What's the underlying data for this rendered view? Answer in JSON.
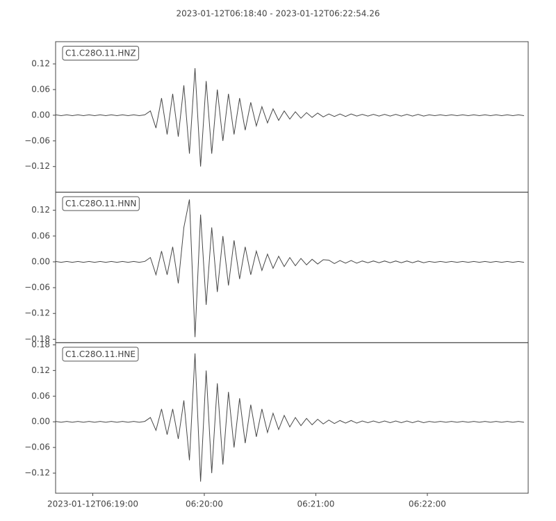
{
  "chart_data": {
    "type": "line",
    "title": "2023-01-12T06:18:40  -  2023-01-12T06:22:54.26",
    "x": [
      0,
      3,
      6,
      9,
      12,
      15,
      18,
      21,
      24,
      27,
      30,
      33,
      36,
      39,
      42,
      45,
      48,
      51,
      54,
      57,
      60,
      63,
      66,
      69,
      72,
      75,
      78,
      81,
      84,
      87,
      90,
      93,
      96,
      99,
      102,
      105,
      108,
      111,
      114,
      117,
      120,
      123,
      126,
      129,
      132,
      135,
      138,
      141,
      144,
      147,
      150,
      153,
      156,
      159,
      162,
      165,
      168,
      171,
      174,
      177,
      180,
      183,
      186,
      189,
      192,
      195,
      198,
      201,
      204,
      207,
      210,
      213,
      216,
      219,
      222,
      225,
      228,
      231,
      234,
      237,
      240,
      243,
      246,
      249,
      252
    ],
    "xlim": [
      0,
      254.26
    ],
    "xticks": [
      {
        "value": 20,
        "label": "2023-01-12T06:19:00"
      },
      {
        "value": 80,
        "label": "06:20:00"
      },
      {
        "value": 140,
        "label": "06:21:00"
      },
      {
        "value": 200,
        "label": "06:22:00"
      }
    ],
    "series": [
      {
        "name": "C1.C28O.11.HNZ",
        "color": "#474747",
        "ylim": [
          -0.18,
          0.172
        ],
        "yticks": [
          {
            "value": -0.12,
            "label": "−0.12"
          },
          {
            "value": -0.06,
            "label": "−0.06"
          },
          {
            "value": 0,
            "label": "0.00"
          },
          0.06,
          0.12
        ],
        "values": [
          0.001,
          -0.001,
          0.001,
          -0.001,
          0.001,
          -0.001,
          0.001,
          -0.001,
          0.001,
          -0.001,
          0.001,
          -0.001,
          0.001,
          -0.001,
          0.001,
          -0.001,
          0.001,
          0.01,
          -0.03,
          0.04,
          -0.045,
          0.05,
          -0.05,
          0.07,
          -0.09,
          0.11,
          -0.12,
          0.08,
          -0.09,
          0.06,
          -0.06,
          0.05,
          -0.045,
          0.04,
          -0.035,
          0.03,
          -0.025,
          0.02,
          -0.018,
          0.015,
          -0.012,
          0.01,
          -0.009,
          0.008,
          -0.007,
          0.006,
          -0.005,
          0.005,
          -0.004,
          0.003,
          -0.003,
          0.003,
          -0.003,
          0.003,
          -0.002,
          0.002,
          -0.002,
          0.002,
          -0.002,
          0.002,
          -0.002,
          0.002,
          -0.002,
          0.002,
          -0.002,
          0.002,
          -0.002,
          0.001,
          -0.001,
          0.001,
          -0.001,
          0.001,
          -0.001,
          0.001,
          -0.001,
          0.001,
          -0.001,
          0.001,
          -0.001,
          0.001,
          -0.001,
          0.001,
          -0.001,
          0.001,
          -0.001
        ]
      },
      {
        "name": "C1.C28O.11.HNN",
        "color": "#474747",
        "ylim": [
          -0.188,
          0.162
        ],
        "yticks": [
          {
            "value": -0.18,
            "label": "−0.18"
          },
          {
            "value": -0.12,
            "label": "−0.12"
          },
          {
            "value": -0.06,
            "label": "−0.06"
          },
          {
            "value": 0,
            "label": "0.00"
          },
          0.06,
          0.12
        ],
        "values": [
          0.001,
          -0.001,
          0.001,
          -0.001,
          0.001,
          -0.001,
          0.001,
          -0.001,
          0.001,
          -0.001,
          0.001,
          -0.001,
          0.001,
          -0.001,
          0.001,
          -0.001,
          0.001,
          0.01,
          -0.03,
          0.025,
          -0.03,
          0.035,
          -0.05,
          0.08,
          0.145,
          -0.175,
          0.11,
          -0.1,
          0.08,
          -0.07,
          0.06,
          -0.055,
          0.05,
          -0.04,
          0.035,
          -0.03,
          0.025,
          -0.02,
          0.018,
          -0.015,
          0.013,
          -0.011,
          0.01,
          -0.009,
          0.008,
          -0.007,
          0.006,
          -0.005,
          0.005,
          0.004,
          -0.004,
          0.003,
          -0.003,
          0.003,
          -0.003,
          0.002,
          -0.002,
          0.002,
          -0.002,
          0.002,
          -0.002,
          0.002,
          -0.002,
          0.002,
          -0.002,
          0.002,
          -0.002,
          0.001,
          -0.001,
          0.001,
          -0.001,
          0.001,
          -0.001,
          0.001,
          -0.001,
          0.001,
          -0.001,
          0.001,
          -0.001,
          0.001,
          -0.001,
          0.001,
          -0.001,
          0.001,
          -0.001
        ]
      },
      {
        "name": "C1.C28O.11.HNE",
        "color": "#474747",
        "ylim": [
          -0.167,
          0.185
        ],
        "yticks": [
          {
            "value": -0.12,
            "label": "−0.12"
          },
          {
            "value": -0.06,
            "label": "−0.06"
          },
          {
            "value": 0,
            "label": "0.00"
          },
          0.06,
          0.12,
          0.18
        ],
        "values": [
          0.001,
          -0.001,
          0.001,
          -0.001,
          0.001,
          -0.001,
          0.001,
          -0.001,
          0.001,
          -0.001,
          0.001,
          -0.001,
          0.001,
          -0.001,
          0.001,
          -0.001,
          0.001,
          0.01,
          -0.02,
          0.03,
          -0.03,
          0.03,
          -0.04,
          0.05,
          -0.09,
          0.16,
          -0.14,
          0.12,
          -0.12,
          0.09,
          -0.1,
          0.07,
          -0.06,
          0.055,
          -0.05,
          0.04,
          -0.035,
          0.03,
          -0.025,
          0.02,
          -0.018,
          0.015,
          -0.012,
          0.01,
          -0.009,
          0.008,
          -0.007,
          0.006,
          -0.005,
          0.004,
          -0.004,
          0.003,
          -0.003,
          0.003,
          -0.003,
          0.002,
          -0.002,
          0.002,
          -0.002,
          0.002,
          -0.002,
          0.002,
          -0.002,
          0.002,
          -0.002,
          0.002,
          -0.002,
          0.001,
          -0.001,
          0.001,
          -0.001,
          0.001,
          -0.001,
          0.001,
          -0.001,
          0.001,
          -0.001,
          0.001,
          -0.001,
          0.001,
          -0.001,
          0.001,
          -0.001,
          0.001,
          -0.001
        ]
      }
    ]
  }
}
